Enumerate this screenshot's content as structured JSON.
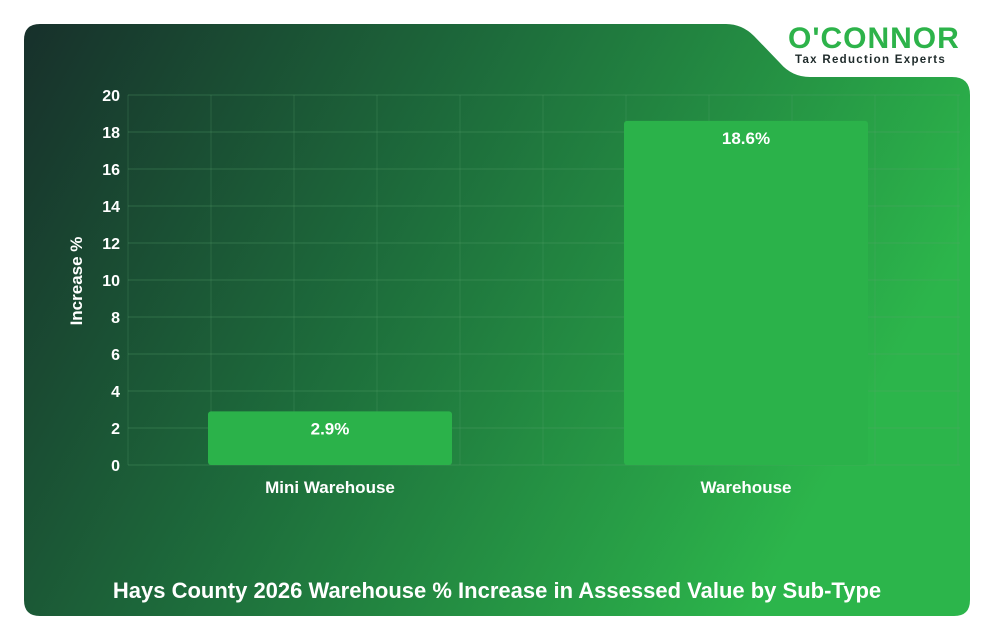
{
  "brand": {
    "name": "O'CONNOR",
    "tagline": "Tax Reduction Experts"
  },
  "colors": {
    "bar": "#2bb24a",
    "bg_dark": "#17302b",
    "bg_light": "#2cb54b",
    "grid": "#5aa46e"
  },
  "chart_data": {
    "type": "bar",
    "title": "Hays County 2026 Warehouse % Increase in Assessed Value by Sub-Type",
    "xlabel": "",
    "ylabel": "Increase %",
    "categories": [
      "Mini Warehouse",
      "Warehouse"
    ],
    "values": [
      2.9,
      18.6
    ],
    "data_labels": [
      "2.9%",
      "18.6%"
    ],
    "ylim": [
      0,
      20
    ],
    "yticks": [
      0,
      2,
      4,
      6,
      8,
      10,
      12,
      14,
      16,
      18,
      20
    ],
    "grid": true
  }
}
